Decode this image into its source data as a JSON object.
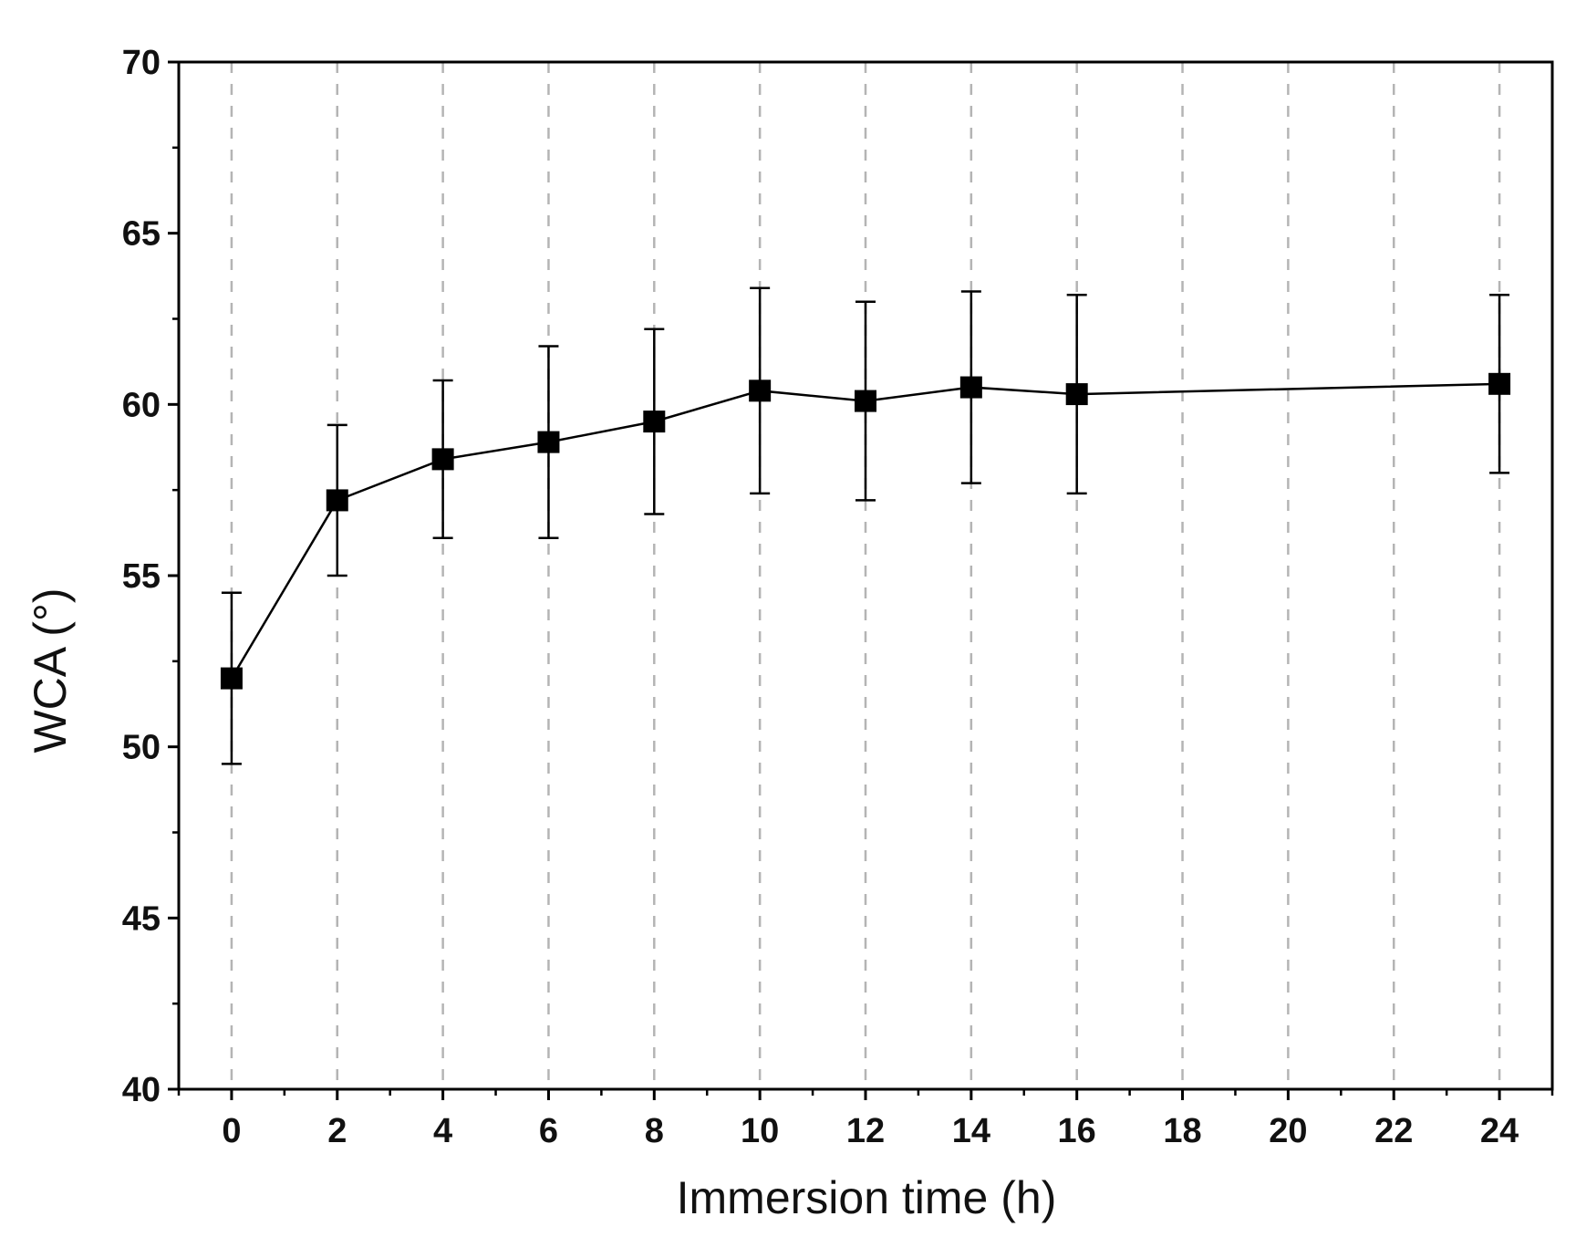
{
  "chart_data": {
    "type": "scatter",
    "title": "",
    "xlabel": "Immersion time (h)",
    "ylabel": "WCA (°)",
    "xlim": [
      -1,
      25
    ],
    "ylim": [
      40,
      70
    ],
    "x_ticks": [
      0,
      2,
      4,
      6,
      8,
      10,
      12,
      14,
      16,
      18,
      20,
      22,
      24
    ],
    "y_ticks": [
      40,
      45,
      50,
      55,
      60,
      65,
      70
    ],
    "x_tick_labels": [
      "0",
      "2",
      "4",
      "6",
      "8",
      "10",
      "12",
      "14",
      "16",
      "18",
      "20",
      "22",
      "24"
    ],
    "y_tick_labels": [
      "40",
      "45",
      "50",
      "55",
      "60",
      "65",
      "70"
    ],
    "grid": "vertical dashed lines at each x tick",
    "marker": "filled square",
    "connected": true,
    "color": "#000000",
    "grid_color": "#b4b4b4",
    "series": [
      {
        "x": [
          0,
          2,
          4,
          6,
          8,
          10,
          12,
          14,
          16,
          24
        ],
        "y": [
          52.0,
          57.2,
          58.4,
          58.9,
          59.5,
          60.4,
          60.1,
          60.5,
          60.3,
          60.6
        ],
        "error_low": [
          49.5,
          55.0,
          56.1,
          56.1,
          56.8,
          57.4,
          57.2,
          57.7,
          57.4,
          58.0
        ],
        "error_high": [
          54.5,
          59.4,
          60.7,
          61.7,
          62.2,
          63.4,
          63.0,
          63.3,
          63.2,
          63.2
        ]
      }
    ]
  }
}
